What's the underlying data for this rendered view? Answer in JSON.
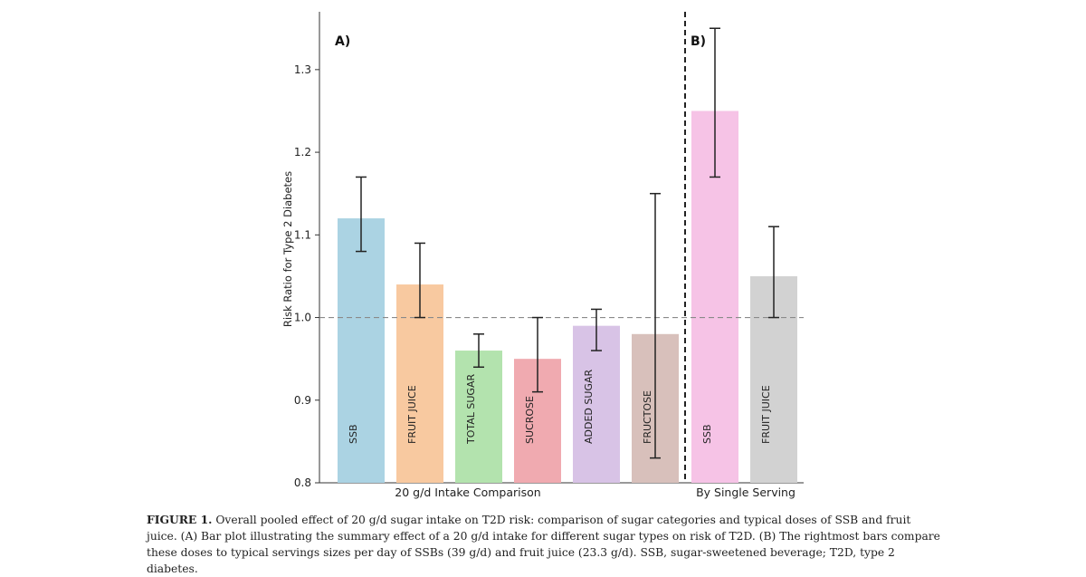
{
  "chart_data": {
    "type": "bar",
    "ylabel": "Risk Ratio for Type 2 Diabetes",
    "ylim": [
      0.8,
      1.37
    ],
    "yticks": [
      0.8,
      0.9,
      1.0,
      1.1,
      1.2,
      1.3
    ],
    "ytick_labels": [
      "0.8",
      "0.9",
      "1.0",
      "1.1",
      "1.2",
      "1.3"
    ],
    "reference_line": 1.0,
    "panels": [
      {
        "label": "A)",
        "group_label": "20 g/d Intake Comparison",
        "bars": [
          {
            "name": "SSB",
            "value": 1.12,
            "ci": [
              1.08,
              1.17
            ],
            "color": "#abd3e3"
          },
          {
            "name": "FRUIT JUICE",
            "value": 1.04,
            "ci": [
              1.0,
              1.09
            ],
            "color": "#f8c9a0"
          },
          {
            "name": "TOTAL SUGAR",
            "value": 0.96,
            "ci": [
              0.94,
              0.98
            ],
            "color": "#b3e3ae"
          },
          {
            "name": "SUCROSE",
            "value": 0.95,
            "ci": [
              0.91,
              1.0
            ],
            "color": "#f0aab0"
          },
          {
            "name": "ADDED SUGAR",
            "value": 0.99,
            "ci": [
              0.96,
              1.01
            ],
            "color": "#d8c3e6"
          },
          {
            "name": "FRUCTOSE",
            "value": 0.98,
            "ci": [
              0.83,
              1.15
            ],
            "color": "#d8c0bb"
          }
        ]
      },
      {
        "label": "B)",
        "group_label": "By Single Serving",
        "bars": [
          {
            "name": "SSB",
            "value": 1.25,
            "ci": [
              1.17,
              1.35
            ],
            "color": "#f6c3e6"
          },
          {
            "name": "FRUIT JUICE",
            "value": 1.05,
            "ci": [
              1.0,
              1.11
            ],
            "color": "#d2d2d2"
          }
        ]
      }
    ]
  },
  "caption": {
    "label": "FIGURE 1.",
    "text": "Overall pooled effect of 20 g/d sugar intake on T2D risk: comparison of sugar categories and typical doses of SSB and fruit juice. (A) Bar plot illustrating the summary effect of a 20 g/d intake for different sugar types on risk of T2D. (B) The rightmost bars compare these doses to typical servings sizes per day of SSBs (39 g/d) and fruit juice (23.3 g/d). SSB, sugar-sweetened beverage; T2D, type 2 diabetes."
  }
}
